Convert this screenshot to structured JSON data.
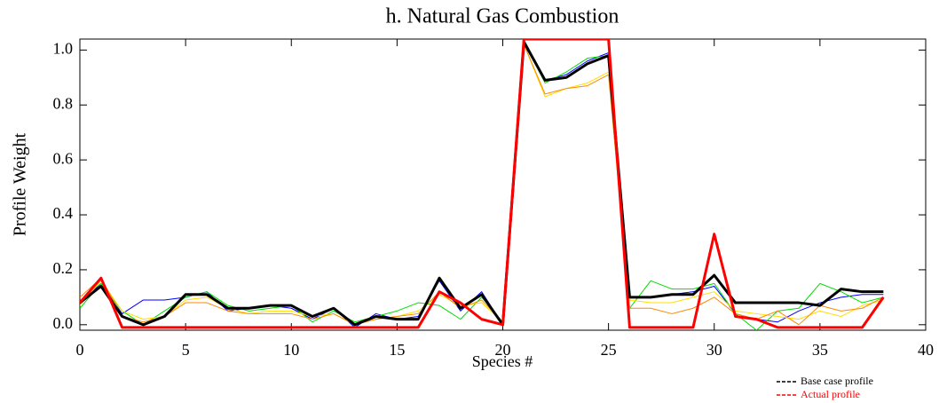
{
  "chart_data": {
    "type": "line",
    "title": "h.  Natural Gas Combustion",
    "x_label": "Species #",
    "y_label": "Profile Weight",
    "x": [
      0,
      1,
      2,
      3,
      4,
      5,
      6,
      7,
      8,
      9,
      10,
      11,
      12,
      13,
      14,
      15,
      16,
      17,
      18,
      19,
      20,
      21,
      22,
      23,
      24,
      25,
      26,
      27,
      28,
      29,
      30,
      31,
      32,
      33,
      34,
      35,
      36,
      37,
      38
    ],
    "xlim": [
      0,
      40
    ],
    "xticks": [
      0,
      5,
      10,
      15,
      20,
      25,
      30,
      35,
      40
    ],
    "ylim": [
      -0.02,
      1.04
    ],
    "yticks": [
      {
        "value": 0,
        "label": "0.0"
      },
      0.2,
      0.4,
      0.6,
      0.8,
      {
        "value": 1,
        "label": "1.0"
      }
    ],
    "series": [
      {
        "color": "#0000ff",
        "values": [
          0.08,
          0.15,
          0.04,
          0.09,
          0.09,
          0.1,
          0.12,
          0.05,
          0.06,
          0.07,
          0.06,
          0.02,
          0.06,
          -0.01,
          0.04,
          0.02,
          0.03,
          0.16,
          0.05,
          0.12,
          0.0,
          1.02,
          0.89,
          0.91,
          0.96,
          0.99,
          0.1,
          0.1,
          0.11,
          0.12,
          0.14,
          0.04,
          0.02,
          0.01,
          0.05,
          0.08,
          0.1,
          0.11,
          0.11
        ]
      },
      {
        "color": "#00dd00",
        "values": [
          0.06,
          0.15,
          0.05,
          0.0,
          0.05,
          0.1,
          0.12,
          0.07,
          0.05,
          0.06,
          0.07,
          0.01,
          0.05,
          0.01,
          0.03,
          0.05,
          0.08,
          0.07,
          0.02,
          0.1,
          0.01,
          1.03,
          0.88,
          0.92,
          0.97,
          0.98,
          0.06,
          0.16,
          0.13,
          0.13,
          0.15,
          0.04,
          -0.02,
          0.05,
          0.06,
          0.15,
          0.12,
          0.08,
          0.1
        ]
      },
      {
        "color": "#ffdd00",
        "values": [
          0.07,
          0.16,
          0.05,
          0.02,
          0.03,
          0.09,
          0.1,
          0.06,
          0.04,
          0.05,
          0.05,
          0.03,
          0.04,
          0.0,
          0.02,
          0.03,
          0.05,
          0.11,
          0.07,
          0.08,
          0.01,
          1.02,
          0.83,
          0.86,
          0.88,
          0.92,
          0.09,
          0.08,
          0.08,
          0.1,
          0.12,
          0.05,
          0.04,
          0.03,
          0.02,
          0.05,
          0.03,
          0.07,
          0.09
        ]
      },
      {
        "color": "#ff8800",
        "values": [
          0.1,
          0.17,
          0.03,
          0.01,
          0.03,
          0.08,
          0.08,
          0.05,
          0.04,
          0.04,
          0.04,
          0.02,
          0.04,
          0.0,
          0.02,
          0.03,
          0.04,
          0.12,
          0.06,
          0.09,
          0.01,
          1.02,
          0.84,
          0.86,
          0.87,
          0.91,
          0.06,
          0.06,
          0.04,
          0.06,
          0.1,
          0.04,
          0.02,
          0.05,
          0.0,
          0.07,
          0.05,
          0.06,
          0.1
        ]
      },
      {
        "name": "Base case profile",
        "color": "#000000",
        "width": 3,
        "values": [
          0.08,
          0.14,
          0.03,
          0.0,
          0.03,
          0.11,
          0.11,
          0.06,
          0.06,
          0.07,
          0.07,
          0.03,
          0.06,
          0.0,
          0.03,
          0.02,
          0.02,
          0.17,
          0.06,
          0.11,
          0.0,
          1.03,
          0.89,
          0.9,
          0.95,
          0.98,
          0.1,
          0.1,
          0.11,
          0.11,
          0.18,
          0.08,
          0.08,
          0.08,
          0.08,
          0.07,
          0.13,
          0.12,
          0.12
        ]
      },
      {
        "name": "Actual profile",
        "color": "#ff0000",
        "width": 3,
        "values": [
          0.08,
          0.17,
          -0.01,
          -0.01,
          -0.01,
          -0.01,
          -0.01,
          -0.01,
          -0.01,
          -0.01,
          -0.01,
          -0.01,
          -0.01,
          -0.01,
          -0.01,
          -0.01,
          -0.01,
          0.12,
          0.08,
          0.02,
          0.0,
          1.04,
          1.04,
          1.04,
          1.04,
          1.04,
          -0.01,
          -0.01,
          -0.01,
          -0.01,
          0.33,
          0.03,
          0.02,
          -0.01,
          -0.01,
          -0.01,
          -0.01,
          -0.01,
          0.1
        ]
      }
    ]
  }
}
